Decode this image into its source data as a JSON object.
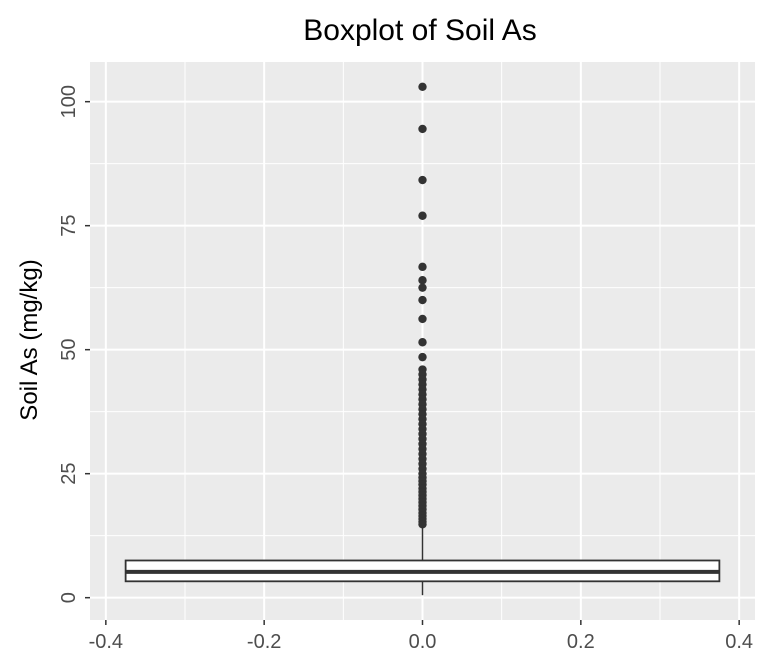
{
  "chart_data": {
    "type": "boxplot",
    "title": "Boxplot of Soil As",
    "xlabel": "",
    "ylabel": "Soil As (mg/kg)",
    "xlim": [
      -0.4,
      0.4
    ],
    "ylim": [
      0,
      103
    ],
    "x_ticks": [
      "-0.4",
      "-0.2",
      "0.0",
      "0.2",
      "0.4"
    ],
    "y_ticks": [
      "0",
      "25",
      "50",
      "75",
      "100"
    ],
    "grid": true,
    "box": {
      "x": 0.0,
      "width_extent": [
        -0.375,
        0.375
      ],
      "lower_whisker": 0.5,
      "q1": 3.3,
      "median": 5.2,
      "q3": 7.5,
      "upper_whisker": 14.5
    },
    "outliers": [
      103,
      94.5,
      84.2,
      77,
      66.7,
      64,
      62.5,
      60,
      56.2,
      51.5,
      48.5,
      46,
      45,
      44,
      43,
      42,
      41,
      40,
      39,
      38,
      37,
      36,
      35,
      34,
      33,
      32,
      31,
      30,
      29,
      28,
      27,
      26,
      25,
      24.2,
      23.5,
      22.8,
      22,
      21.3,
      20.6,
      19.9,
      19.2,
      18.5,
      17.8,
      17.1,
      16.5,
      15.9,
      15.3,
      14.8
    ],
    "colors": {
      "panel": "#ebebeb",
      "grid": "#ffffff",
      "box_line": "#333333",
      "point": "#333333"
    }
  }
}
